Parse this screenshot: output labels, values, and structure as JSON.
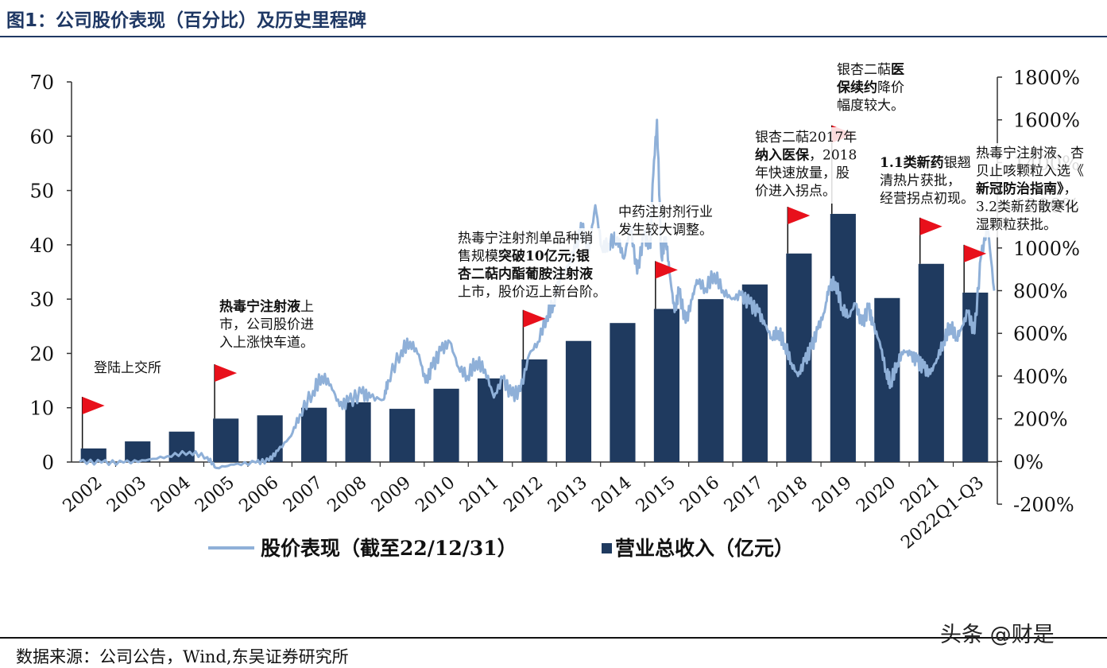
{
  "header": {
    "title": "图1：公司股价表现（百分比）及历史里程碑"
  },
  "footer": {
    "source": "数据来源：公司公告，Wind,东吴证券研究所",
    "watermark": "头条 @财是"
  },
  "colors": {
    "bar": "#1f3a5f",
    "line": "#8fb0d8",
    "flag": "#e8101b",
    "title": "#1f3864"
  },
  "chart_data": {
    "type": "bar",
    "categories": [
      "2002",
      "2003",
      "2004",
      "2005",
      "2006",
      "2007",
      "2008",
      "2009",
      "2010",
      "2011",
      "2012",
      "2013",
      "2014",
      "2015",
      "2016",
      "2017",
      "2018",
      "2019",
      "2020",
      "2021",
      "2022Q1-Q3"
    ],
    "series": [
      {
        "name": "营业总收入（亿元）",
        "type": "bar",
        "axis": "left",
        "values": [
          2.5,
          3.8,
          5.6,
          8.0,
          8.6,
          10.0,
          11.0,
          9.8,
          13.5,
          15.4,
          18.9,
          22.3,
          25.6,
          28.2,
          30.0,
          32.7,
          38.4,
          45.7,
          30.2,
          36.5,
          31.2
        ]
      },
      {
        "name": "股价表现（截至22/12/31）",
        "type": "line",
        "axis": "right",
        "points": [
          [
            2002.0,
            0
          ],
          [
            2002.5,
            -5
          ],
          [
            2003.0,
            -5
          ],
          [
            2003.5,
            5
          ],
          [
            2004.0,
            25
          ],
          [
            2004.5,
            45
          ],
          [
            2004.9,
            20
          ],
          [
            2005.1,
            -30
          ],
          [
            2005.5,
            -15
          ],
          [
            2006.0,
            -5
          ],
          [
            2006.3,
            5
          ],
          [
            2006.5,
            50
          ],
          [
            2006.8,
            120
          ],
          [
            2007.0,
            220
          ],
          [
            2007.3,
            330
          ],
          [
            2007.5,
            400
          ],
          [
            2007.7,
            360
          ],
          [
            2007.9,
            260
          ],
          [
            2008.1,
            280
          ],
          [
            2008.4,
            320
          ],
          [
            2008.6,
            300
          ],
          [
            2008.9,
            290
          ],
          [
            2009.0,
            380
          ],
          [
            2009.3,
            520
          ],
          [
            2009.5,
            560
          ],
          [
            2009.7,
            500
          ],
          [
            2009.85,
            370
          ],
          [
            2010.0,
            440
          ],
          [
            2010.2,
            520
          ],
          [
            2010.4,
            560
          ],
          [
            2010.6,
            440
          ],
          [
            2010.8,
            400
          ],
          [
            2011.0,
            470
          ],
          [
            2011.2,
            430
          ],
          [
            2011.4,
            300
          ],
          [
            2011.6,
            390
          ],
          [
            2011.8,
            310
          ],
          [
            2012.0,
            330
          ],
          [
            2012.2,
            500
          ],
          [
            2012.4,
            560
          ],
          [
            2012.6,
            680
          ],
          [
            2012.75,
            740
          ],
          [
            2012.9,
            860
          ],
          [
            2013.1,
            920
          ],
          [
            2013.25,
            1000
          ],
          [
            2013.4,
            1100
          ],
          [
            2013.55,
            980
          ],
          [
            2013.7,
            1200
          ],
          [
            2013.85,
            1000
          ],
          [
            2014.0,
            1020
          ],
          [
            2014.2,
            1050
          ],
          [
            2014.35,
            950
          ],
          [
            2014.5,
            1100
          ],
          [
            2014.65,
            880
          ],
          [
            2014.8,
            1060
          ],
          [
            2014.95,
            1000
          ],
          [
            2015.0,
            1300
          ],
          [
            2015.1,
            1600
          ],
          [
            2015.2,
            960
          ],
          [
            2015.3,
            1050
          ],
          [
            2015.4,
            860
          ],
          [
            2015.5,
            700
          ],
          [
            2015.6,
            800
          ],
          [
            2015.75,
            650
          ],
          [
            2015.9,
            760
          ],
          [
            2016.0,
            850
          ],
          [
            2016.2,
            810
          ],
          [
            2016.4,
            880
          ],
          [
            2016.6,
            800
          ],
          [
            2016.8,
            760
          ],
          [
            2017.0,
            780
          ],
          [
            2017.2,
            740
          ],
          [
            2017.4,
            700
          ],
          [
            2017.55,
            640
          ],
          [
            2017.7,
            580
          ],
          [
            2017.85,
            610
          ],
          [
            2018.0,
            550
          ],
          [
            2018.15,
            460
          ],
          [
            2018.3,
            400
          ],
          [
            2018.45,
            470
          ],
          [
            2018.6,
            530
          ],
          [
            2018.75,
            620
          ],
          [
            2018.9,
            700
          ],
          [
            2019.0,
            820
          ],
          [
            2019.15,
            840
          ],
          [
            2019.3,
            720
          ],
          [
            2019.45,
            680
          ],
          [
            2019.6,
            740
          ],
          [
            2019.75,
            640
          ],
          [
            2019.9,
            720
          ],
          [
            2020.0,
            640
          ],
          [
            2020.15,
            560
          ],
          [
            2020.3,
            420
          ],
          [
            2020.4,
            370
          ],
          [
            2020.55,
            460
          ],
          [
            2020.7,
            520
          ],
          [
            2020.85,
            500
          ],
          [
            2021.0,
            470
          ],
          [
            2021.15,
            440
          ],
          [
            2021.3,
            410
          ],
          [
            2021.45,
            480
          ],
          [
            2021.6,
            560
          ],
          [
            2021.75,
            640
          ],
          [
            2021.9,
            580
          ],
          [
            2022.0,
            620
          ],
          [
            2022.15,
            700
          ],
          [
            2022.3,
            600
          ],
          [
            2022.45,
            960
          ],
          [
            2022.6,
            1100
          ],
          [
            2022.75,
            800
          ]
        ]
      }
    ],
    "left_axis": {
      "ylim": [
        0,
        70
      ],
      "ticks": [
        0,
        10,
        20,
        30,
        40,
        50,
        60,
        70
      ]
    },
    "right_axis": {
      "ylim": [
        -200,
        1800
      ],
      "ticks": [
        "-200%",
        "0%",
        "200%",
        "400%",
        "600%",
        "800%",
        "1000%",
        "1200%",
        "1400%",
        "1600%",
        "1800%"
      ]
    },
    "legend": {
      "placement": "bottom",
      "line_label": "股价表现（截至22/12/31）",
      "bar_label": "营业总收入（亿元）"
    },
    "milestones": [
      {
        "year": "2002",
        "bar_value": 2.5,
        "flag_value": 12,
        "text": "登陆上交所"
      },
      {
        "year": "2005",
        "bar_value": 8.0,
        "flag_value": 18,
        "text": "热毒宁注射液上市，公司股价进入上涨快车道。"
      },
      {
        "year": "2012",
        "bar_value": 18.9,
        "flag_value": 28,
        "text": "热毒宁注射剂单品种销售规模突破10亿元;银杏二萜内酯葡胺注射液上市，股价迈上新台阶。"
      },
      {
        "year": "2015",
        "bar_value": 28.2,
        "flag_value": 37,
        "text": "中药注射剂行业发生较大调整。"
      },
      {
        "year": "2018",
        "bar_value": 38.4,
        "flag_value": 47,
        "text": "银杏二萜2017年纳入医保，2018年快速放量，股价进入拐点。"
      },
      {
        "year": "2019",
        "bar_value": 45.7,
        "flag_value": 62,
        "text": "银杏二萜医保续约降价幅度较大。"
      },
      {
        "year": "2021",
        "bar_value": 36.5,
        "flag_value": 45,
        "text": "1.1类新药银翘清热片获批，经营拐点初现。"
      },
      {
        "year": "2022Q1-Q3",
        "bar_value": 31.2,
        "flag_value": 40,
        "text": "热毒宁注射液、杏贝止咳颗粒入选《新冠防治指南》，3.2类新药散寒化湿颗粒获批。"
      }
    ],
    "annotation_lines": [
      {
        "id": "m2002",
        "lines": [
          [
            [
              "登陆上交所",
              false
            ]
          ]
        ]
      },
      {
        "id": "m2005",
        "lines": [
          [
            [
              "热毒宁注射液",
              true
            ],
            [
              "上",
              false
            ]
          ],
          [
            [
              "市，公司股价进",
              false
            ]
          ],
          [
            [
              "入上涨快车道。",
              false
            ]
          ]
        ]
      },
      {
        "id": "m2012",
        "lines": [
          [
            [
              "热毒宁注射剂单品种销",
              false
            ]
          ],
          [
            [
              "售规模",
              false
            ],
            [
              "突破10亿元;银",
              true
            ]
          ],
          [
            [
              "杏二萜内酯葡胺注射液",
              true
            ]
          ],
          [
            [
              "上市，股价迈上新台阶。",
              false
            ]
          ]
        ]
      },
      {
        "id": "m2015",
        "lines": [
          [
            [
              "中药注射剂行业",
              false
            ]
          ],
          [
            [
              "发生较大调整。",
              false
            ]
          ]
        ]
      },
      {
        "id": "m2018",
        "lines": [
          [
            [
              "银杏二萜2017年",
              false
            ]
          ],
          [
            [
              "纳入医保",
              true
            ],
            [
              "，2018",
              false
            ]
          ],
          [
            [
              "年快速放量，股",
              false
            ]
          ],
          [
            [
              "价进入拐点。",
              false
            ]
          ]
        ]
      },
      {
        "id": "m2019",
        "lines": [
          [
            [
              "银杏二萜",
              false
            ],
            [
              "医",
              true
            ]
          ],
          [
            [
              "保续约",
              true
            ],
            [
              "降价",
              false
            ]
          ],
          [
            [
              "幅度较大。",
              false
            ]
          ]
        ]
      },
      {
        "id": "m2021",
        "lines": [
          [
            [
              "1.1类新药",
              true
            ],
            [
              "银翘",
              false
            ]
          ],
          [
            [
              "清热片获批，",
              false
            ]
          ],
          [
            [
              "经营拐点初现。",
              false
            ]
          ]
        ]
      },
      {
        "id": "m2022",
        "lines": [
          [
            [
              "热毒宁注射液、杏",
              false
            ]
          ],
          [
            [
              "贝止咳颗粒入选《",
              false
            ]
          ],
          [
            [
              "新冠防治指南》",
              true
            ],
            [
              "，",
              false
            ]
          ],
          [
            [
              "3.2类新药散寒化",
              false
            ]
          ],
          [
            [
              "湿颗粒获批。",
              false
            ]
          ]
        ]
      }
    ]
  }
}
